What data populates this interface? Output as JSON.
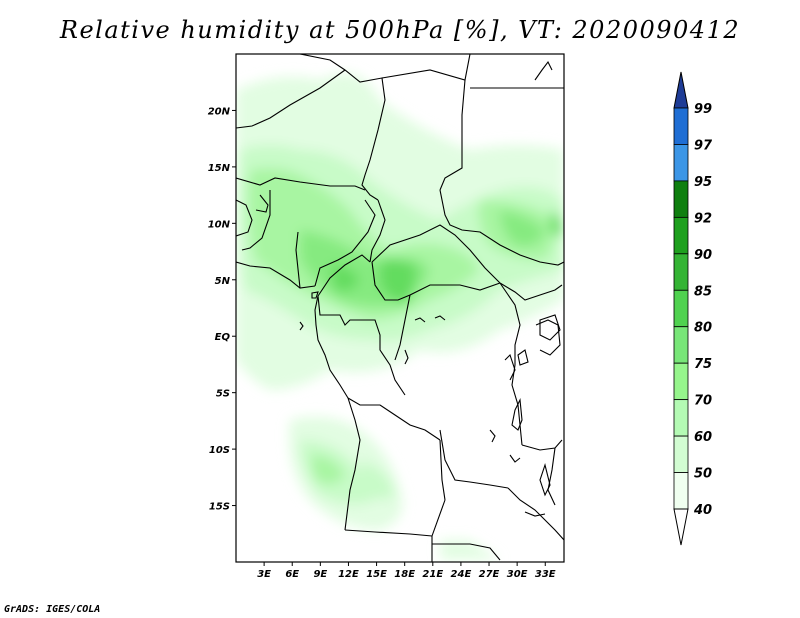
{
  "title": "Relative humidity at 500hPa [%], VT: 2020090412",
  "footer": "GrADS: IGES/COLA",
  "map": {
    "lon_range": [
      0,
      35
    ],
    "lat_range": [
      -20,
      25
    ],
    "lon_ticks": [
      "3E",
      "6E",
      "9E",
      "12E",
      "15E",
      "18E",
      "21E",
      "24E",
      "27E",
      "30E",
      "33E"
    ],
    "lat_ticks": [
      "20N",
      "15N",
      "10N",
      "5N",
      "EQ",
      "5S",
      "10S",
      "15S"
    ]
  },
  "colorbar": {
    "labels": [
      "99",
      "97",
      "95",
      "92",
      "90",
      "85",
      "80",
      "75",
      "70",
      "60",
      "50",
      "40"
    ],
    "colors": [
      "#1e3c96",
      "#1f6ed4",
      "#3c96e6",
      "#0f7f0f",
      "#1ea01e",
      "#34b434",
      "#50d250",
      "#78e678",
      "#96f58c",
      "#b4fab4",
      "#d2fcd2",
      "#f0fff0",
      "#ffffff"
    ]
  }
}
